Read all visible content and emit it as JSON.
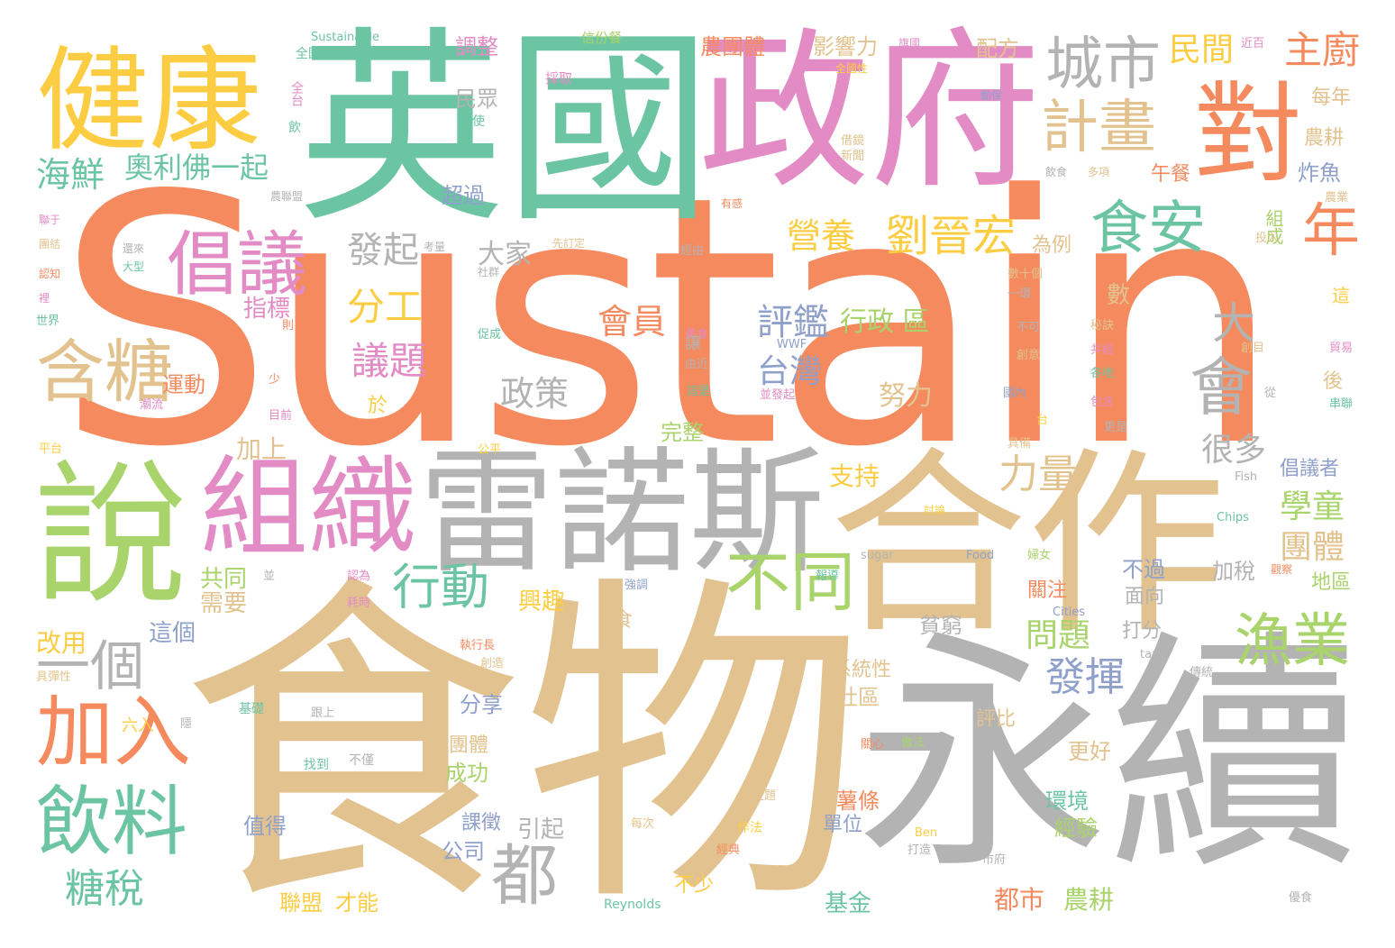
{
  "words": {
    "sustain": "Sustain",
    "shiwu": "食物",
    "yongxu": "永續",
    "yingguo": "英國",
    "zhengfu": "政府",
    "hezuo": "合作",
    "leinuosi": "雷諾斯",
    "jiankang": "健康",
    "shuo": "說",
    "zuzhi": "組織",
    "dui": "對",
    "changyi": "倡議",
    "hantang": "含糖",
    "jiaru": "加入",
    "yinliao": "飲料",
    "chengshi": "城市",
    "jihua": "計畫",
    "shian": "食安",
    "nian": "年",
    "aolifo": "奧利佛一起",
    "haixian": "海鮮",
    "yige": "一個",
    "xingdong": "行動",
    "butong": "不同",
    "yuye": "漁業",
    "du": "都",
    "tangshui": "糖稅",
    "yingyang": "營養",
    "liujinhong": "劉晉宏",
    "zhuchu": "主廚",
    "minjian": "民間",
    "fagong": "分工",
    "yiti": "議題",
    "huiyuan": "會員",
    "pingjian": "評鑑",
    "taiwan": "台灣",
    "xingzhengqu": "行政 區",
    "hui": "會",
    "da": "大",
    "liliang": "力量",
    "henduo": "很多",
    "xuetong": "學童",
    "tuanti": "團體",
    "fahui": "發揮",
    "wenti": "問題",
    "faqi": "發起",
    "dajia": "大家",
    "zhengce": "政策",
    "nuli": "努力",
    "zhichi": "支持",
    "xingqu": "興趣",
    "zhibiao": "指標",
    "yundong": "運動",
    "jiashang": "加上",
    "gongtong": "共同",
    "xuyao": "需要",
    "zhege": "這個",
    "gaiyong": "改用",
    "chaoguo": "超過",
    "shuliang": "數",
    "minzhong": "民眾",
    "tiaozheng": "調整",
    "yingxiangli": "影響力",
    "nongtuanti": "農團體",
    "peifang": "配方",
    "meinian": "每年",
    "nonggeng": "農耕",
    "zhayu": "炸魚",
    "wucan": "午餐",
    "zucheng": "組成",
    "weili": "為例",
    "wanzheng": "完整",
    "yu": "於",
    "fenxiang": "分享",
    "xiaotuanti": "小團體",
    "chenggong": "成功",
    "kezheng": "課徵",
    "yinqi": "引起",
    "gongsi": "公司",
    "zhide": "值得",
    "lianmeng": "聯盟",
    "cainen": "才能",
    "jijin": "基金",
    "dushi": "都市",
    "nonggeng2": "農耕",
    "shutiao": "薯條",
    "danwei": "單位",
    "huanjing": "環境",
    "jingyan": "經驗",
    "gengai": "更好",
    "pingbi": "評比",
    "shequ": "社區",
    "xitongxing": "系統性",
    "pinqiong": "貧窮",
    "guanzhu": "關注",
    "buguo": "不過",
    "mianxiang": "面向",
    "jiashui": "加稅",
    "dafen": "打分",
    "changyizhe": "倡議者",
    "diqu": "地區",
    "houhou": "後",
    "shi": "食",
    "bushao": "不少",
    "sustainable": "Sustainable",
    "xinfen": "信份餐",
    "quanguo": "全國",
    "quantai": "全台",
    "caiqu": "採取",
    "pushi": "迫使",
    "yin": "飲",
    "nongmeng": "農聯盟",
    "dongbao": "動保",
    "jiejian": "借鏡",
    "xinwen": "新聞",
    "yinshi": "飲食",
    "duoxiang": "多項",
    "jinbai": "近百",
    "quanguoxing": "全國性",
    "qiguo": "旗國",
    "lianyu": "聯于",
    "tuanjie": "團結",
    "renzhi": "認知",
    "li": "裡",
    "shijie": "世界",
    "daxing": "大型",
    "haolai": "還來",
    "kaoliang": "考量",
    "shequn": "社群",
    "xianguiding": "先訂定",
    "jingyou": "經由",
    "yougan": "有感",
    "shushige": "數十個",
    "yihuan": "一環",
    "buke": "不可",
    "mijue": "秘訣",
    "gongzu": "共組",
    "gedi": "各地",
    "chuangyi": "創意",
    "chuangmu": "創目",
    "guonei": "國內",
    "baohan": "包含",
    "gengshi": "更是",
    "maoyi": "貿易",
    "chuanlian": "串聯",
    "cong": "從",
    "nongye": "農業",
    "touru": "投入",
    "zhe": "這",
    "meishi": "美食",
    "rang": "讓",
    "youjin": "由近",
    "zheshi": "這是",
    "bingfaqi": "並發起",
    "wwf": "WWF",
    "cucheng": "促成",
    "chaoliu": "潮流",
    "riqian": "目前",
    "shao": "少",
    "ze": "則",
    "pingtai": "平台",
    "gongping": "公平",
    "juyou": "具備",
    "tai": "台",
    "fish": "Fish",
    "chips": "Chips",
    "ziran": "自然",
    "taolun": "討論",
    "sugar": "sugar",
    "food": "Food",
    "funv": "婦女",
    "baodao": "報導",
    "renwei": "認為",
    "haoshi": "耗時",
    "bingjie": "並",
    "qiangdiao": "強調",
    "cities": "Cities",
    "zhixingzhang": "執行長",
    "chuangzao": "創造",
    "tax": "tax",
    "chuantong": "傳統",
    "jutanxing": "具彈性",
    "liuru": "六入",
    "ji": "隱",
    "jichu": "基礎",
    "guanxin": "關心",
    "zuofa": "做法",
    "zhaodao": "找到",
    "bujin": "不僅",
    "gushang": "跟上",
    "zhuti": "主題",
    "meici": "每次",
    "zuofa2": "作法",
    "jingdian": "經典",
    "dazao": "打造",
    "ben": "Ben",
    "shifu": "市府",
    "reynolds": "Reynolds",
    "mantang": "優食",
    "manti": "觀察"
  },
  "palette": {
    "orange": "#f58a5e",
    "tan": "#e2c38f",
    "gray": "#b3b3b3",
    "teal": "#6cc5a2",
    "pink": "#e38bc4",
    "green": "#a9d36b",
    "yellow": "#fccd42",
    "blue": "#8fa0cb"
  }
}
